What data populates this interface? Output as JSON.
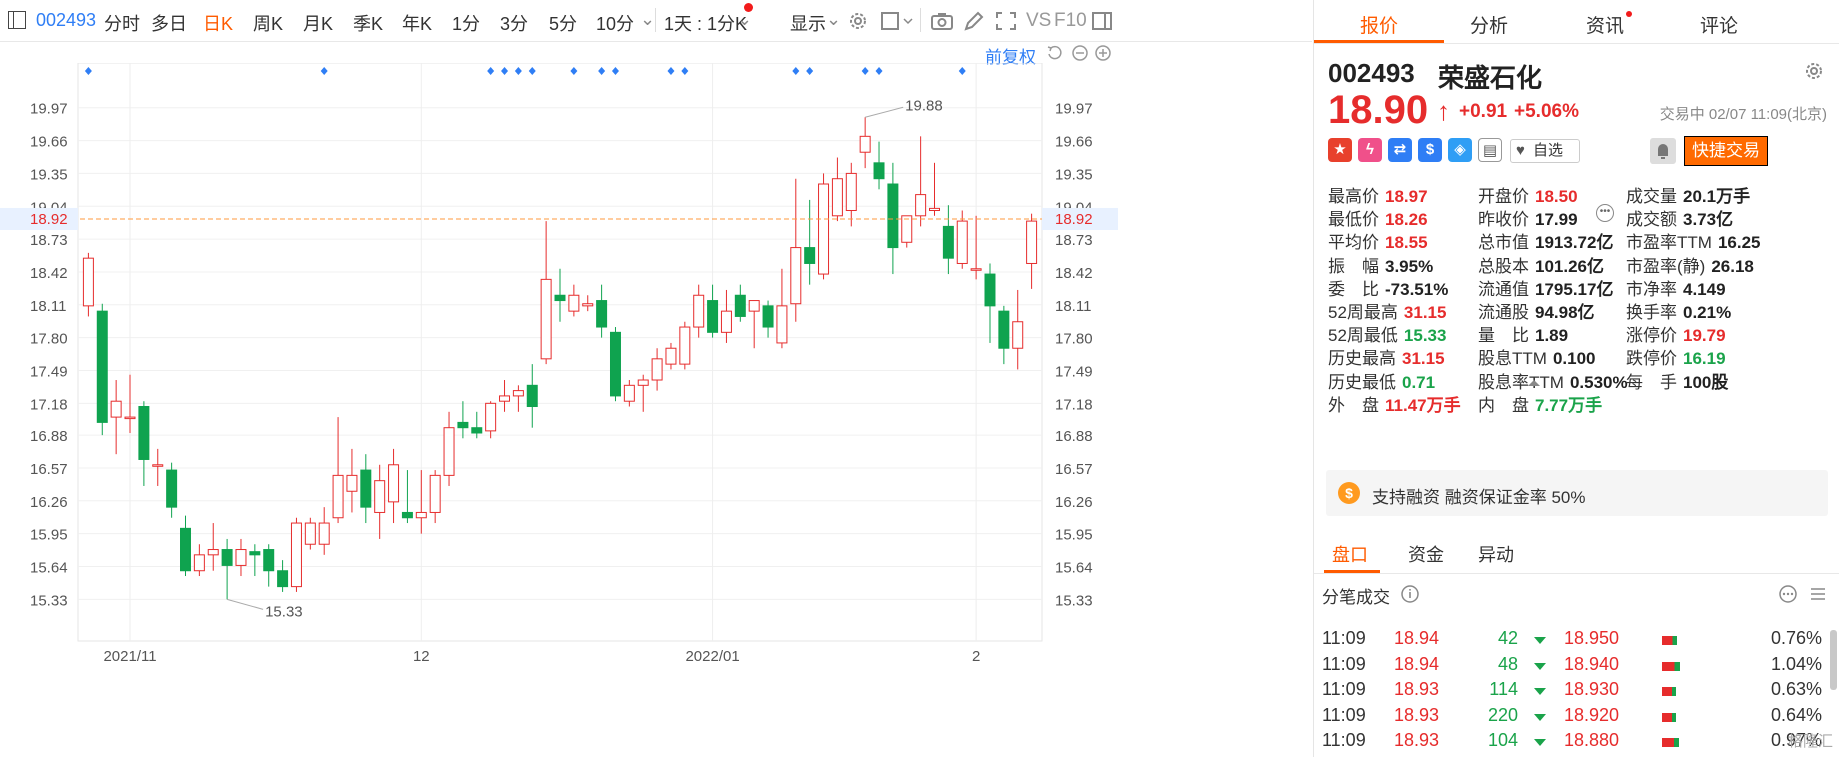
{
  "toolbar": {
    "code": "002493",
    "periods": [
      "分时",
      "多日",
      "日K",
      "周K",
      "月K",
      "季K",
      "年K",
      "1分",
      "3分",
      "5分",
      "10分"
    ],
    "active_period": "日K",
    "range": "1天 : 1分K",
    "display": "显示",
    "vs": "VS",
    "f10": "F10"
  },
  "chart": {
    "fuquan": "前复权",
    "current_price_label": "18.92",
    "max_label": "19.88",
    "min_label": "15.33",
    "x_labels": [
      {
        "label": "2021/11",
        "index": 3
      },
      {
        "label": "12",
        "index": 24
      },
      {
        "label": "2022/01",
        "index": 45
      },
      {
        "label": "2",
        "index": 64
      }
    ],
    "event_marker_indices": [
      0,
      17,
      29,
      30,
      31,
      32,
      35,
      37,
      38,
      42,
      43,
      51,
      52,
      56,
      57,
      63
    ]
  },
  "chart_data": {
    "type": "candlestick",
    "y_ticks": [
      19.97,
      19.66,
      19.35,
      19.04,
      18.73,
      18.42,
      18.11,
      17.8,
      17.49,
      17.18,
      16.88,
      16.57,
      16.26,
      15.95,
      15.64,
      15.33
    ],
    "ylim": [
      15.05,
      20.26
    ],
    "reference_line": 18.92,
    "high": 19.88,
    "low": 15.33,
    "candles": [
      {
        "o": 18.1,
        "h": 18.6,
        "l": 18.0,
        "c": 18.55
      },
      {
        "o": 18.05,
        "h": 18.12,
        "l": 16.88,
        "c": 17.0
      },
      {
        "o": 17.05,
        "h": 17.4,
        "l": 16.7,
        "c": 17.2
      },
      {
        "o": 17.05,
        "h": 17.45,
        "l": 16.9,
        "c": 17.05
      },
      {
        "o": 17.15,
        "h": 17.2,
        "l": 16.4,
        "c": 16.65
      },
      {
        "o": 16.6,
        "h": 16.75,
        "l": 16.4,
        "c": 16.6
      },
      {
        "o": 16.55,
        "h": 16.62,
        "l": 16.1,
        "c": 16.2
      },
      {
        "o": 16.0,
        "h": 16.12,
        "l": 15.55,
        "c": 15.6
      },
      {
        "o": 15.6,
        "h": 15.85,
        "l": 15.55,
        "c": 15.75
      },
      {
        "o": 15.75,
        "h": 16.05,
        "l": 15.6,
        "c": 15.8
      },
      {
        "o": 15.8,
        "h": 15.9,
        "l": 15.33,
        "c": 15.65
      },
      {
        "o": 15.65,
        "h": 15.9,
        "l": 15.55,
        "c": 15.8
      },
      {
        "o": 15.78,
        "h": 15.85,
        "l": 15.55,
        "c": 15.75
      },
      {
        "o": 15.8,
        "h": 15.85,
        "l": 15.45,
        "c": 15.6
      },
      {
        "o": 15.6,
        "h": 15.7,
        "l": 15.4,
        "c": 15.45
      },
      {
        "o": 15.45,
        "h": 16.1,
        "l": 15.4,
        "c": 16.05
      },
      {
        "o": 15.85,
        "h": 16.1,
        "l": 15.8,
        "c": 16.05
      },
      {
        "o": 15.85,
        "h": 16.2,
        "l": 15.75,
        "c": 16.05
      },
      {
        "o": 16.1,
        "h": 17.05,
        "l": 16.05,
        "c": 16.5
      },
      {
        "o": 16.35,
        "h": 16.75,
        "l": 16.15,
        "c": 16.5
      },
      {
        "o": 16.55,
        "h": 16.7,
        "l": 16.05,
        "c": 16.2
      },
      {
        "o": 16.15,
        "h": 16.6,
        "l": 15.9,
        "c": 16.45
      },
      {
        "o": 16.25,
        "h": 16.75,
        "l": 16.05,
        "c": 16.6
      },
      {
        "o": 16.15,
        "h": 16.55,
        "l": 16.05,
        "c": 16.1
      },
      {
        "o": 16.1,
        "h": 16.55,
        "l": 15.95,
        "c": 16.15
      },
      {
        "o": 16.15,
        "h": 16.55,
        "l": 16.05,
        "c": 16.5
      },
      {
        "o": 16.5,
        "h": 17.1,
        "l": 16.4,
        "c": 16.95
      },
      {
        "o": 17.0,
        "h": 17.2,
        "l": 16.85,
        "c": 16.95
      },
      {
        "o": 16.95,
        "h": 17.1,
        "l": 16.85,
        "c": 16.9
      },
      {
        "o": 16.92,
        "h": 17.2,
        "l": 16.85,
        "c": 17.18
      },
      {
        "o": 17.2,
        "h": 17.4,
        "l": 17.1,
        "c": 17.25
      },
      {
        "o": 17.25,
        "h": 17.35,
        "l": 17.1,
        "c": 17.3
      },
      {
        "o": 17.35,
        "h": 17.55,
        "l": 16.95,
        "c": 17.15
      },
      {
        "o": 17.6,
        "h": 18.9,
        "l": 17.55,
        "c": 18.35
      },
      {
        "o": 18.2,
        "h": 18.45,
        "l": 17.95,
        "c": 18.15
      },
      {
        "o": 18.05,
        "h": 18.3,
        "l": 18.0,
        "c": 18.2
      },
      {
        "o": 18.1,
        "h": 18.2,
        "l": 18.05,
        "c": 18.12
      },
      {
        "o": 18.15,
        "h": 18.3,
        "l": 17.8,
        "c": 17.9
      },
      {
        "o": 17.85,
        "h": 17.9,
        "l": 17.2,
        "c": 17.25
      },
      {
        "o": 17.2,
        "h": 17.4,
        "l": 17.15,
        "c": 17.35
      },
      {
        "o": 17.35,
        "h": 17.45,
        "l": 17.1,
        "c": 17.4
      },
      {
        "o": 17.4,
        "h": 17.7,
        "l": 17.3,
        "c": 17.6
      },
      {
        "o": 17.55,
        "h": 17.75,
        "l": 17.5,
        "c": 17.7
      },
      {
        "o": 17.55,
        "h": 17.95,
        "l": 17.5,
        "c": 17.9
      },
      {
        "o": 17.9,
        "h": 18.3,
        "l": 17.8,
        "c": 18.2
      },
      {
        "o": 18.15,
        "h": 18.3,
        "l": 17.8,
        "c": 17.85
      },
      {
        "o": 17.85,
        "h": 18.25,
        "l": 17.75,
        "c": 18.05
      },
      {
        "o": 18.2,
        "h": 18.3,
        "l": 17.95,
        "c": 18.0
      },
      {
        "o": 18.05,
        "h": 18.15,
        "l": 17.7,
        "c": 18.15
      },
      {
        "o": 18.1,
        "h": 18.15,
        "l": 17.8,
        "c": 17.9
      },
      {
        "o": 17.75,
        "h": 18.45,
        "l": 17.7,
        "c": 18.1
      },
      {
        "o": 18.12,
        "h": 19.3,
        "l": 17.95,
        "c": 18.65
      },
      {
        "o": 18.65,
        "h": 19.1,
        "l": 18.3,
        "c": 18.5
      },
      {
        "o": 18.4,
        "h": 19.35,
        "l": 18.35,
        "c": 19.25
      },
      {
        "o": 18.95,
        "h": 19.5,
        "l": 18.9,
        "c": 19.3
      },
      {
        "o": 19.0,
        "h": 19.45,
        "l": 18.85,
        "c": 19.35
      },
      {
        "o": 19.55,
        "h": 19.88,
        "l": 19.4,
        "c": 19.7
      },
      {
        "o": 19.45,
        "h": 19.65,
        "l": 19.2,
        "c": 19.3
      },
      {
        "o": 19.25,
        "h": 19.45,
        "l": 18.4,
        "c": 18.65
      },
      {
        "o": 18.7,
        "h": 18.95,
        "l": 18.65,
        "c": 18.95
      },
      {
        "o": 18.95,
        "h": 19.7,
        "l": 18.85,
        "c": 19.15
      },
      {
        "o": 19.0,
        "h": 19.45,
        "l": 18.95,
        "c": 19.02
      },
      {
        "o": 18.85,
        "h": 19.05,
        "l": 18.4,
        "c": 18.55
      },
      {
        "o": 18.5,
        "h": 19.0,
        "l": 18.45,
        "c": 18.9
      },
      {
        "o": 18.45,
        "h": 18.95,
        "l": 18.35,
        "c": 18.45
      },
      {
        "o": 18.4,
        "h": 18.5,
        "l": 17.75,
        "c": 18.1
      },
      {
        "o": 18.05,
        "h": 18.1,
        "l": 17.55,
        "c": 17.7
      },
      {
        "o": 17.7,
        "h": 18.25,
        "l": 17.5,
        "c": 17.95
      },
      {
        "o": 18.5,
        "h": 18.97,
        "l": 18.26,
        "c": 18.9
      }
    ]
  },
  "panel": {
    "tabs": [
      "报价",
      "分析",
      "资讯",
      "评论"
    ],
    "code": "002493",
    "name": "荣盛石化",
    "price": "18.90",
    "change": "+0.91",
    "change_pct": "+5.06%",
    "status": "交易中 02/07 11:09(北京)",
    "zixuan": "自选",
    "quick_trade": "快捷交易",
    "stats": [
      [
        {
          "label": "最高价",
          "value": "18.97",
          "color": "red"
        },
        {
          "label": "开盘价",
          "value": "18.50",
          "color": "red"
        },
        {
          "label": "成交量",
          "value": "20.1万手",
          "color": "dark"
        }
      ],
      [
        {
          "label": "最低价",
          "value": "18.26",
          "color": "red"
        },
        {
          "label": "昨收价",
          "value": "17.99",
          "color": "dark"
        },
        {
          "label": "成交额",
          "value": "3.73亿",
          "color": "dark"
        }
      ],
      [
        {
          "label": "平均价",
          "value": "18.55",
          "color": "red"
        },
        {
          "label": "总市值",
          "value": "1913.72亿",
          "color": "dark"
        },
        {
          "label": "市盈率TTM",
          "value": "16.25",
          "color": "dark"
        }
      ],
      [
        {
          "label": "振　幅",
          "value": "3.95%",
          "color": "dark"
        },
        {
          "label": "总股本",
          "value": "101.26亿",
          "color": "dark"
        },
        {
          "label": "市盈率(静)",
          "value": "26.18",
          "color": "dark"
        }
      ],
      [
        {
          "label": "委　比",
          "value": "-73.51%",
          "color": "dark"
        },
        {
          "label": "流通值",
          "value": "1795.17亿",
          "color": "dark"
        },
        {
          "label": "市净率",
          "value": "4.149",
          "color": "dark"
        }
      ],
      [
        {
          "label": "52周最高",
          "value": "31.15",
          "color": "red"
        },
        {
          "label": "流通股",
          "value": "94.98亿",
          "color": "dark"
        },
        {
          "label": "换手率",
          "value": "0.21%",
          "color": "dark"
        }
      ],
      [
        {
          "label": "52周最低",
          "value": "15.33",
          "color": "green"
        },
        {
          "label": "量　比",
          "value": "1.89",
          "color": "dark"
        },
        {
          "label": "涨停价",
          "value": "19.79",
          "color": "red"
        }
      ],
      [
        {
          "label": "历史最高",
          "value": "31.15",
          "color": "red"
        },
        {
          "label": "股息TTM",
          "value": "0.100",
          "color": "dark"
        },
        {
          "label": "跌停价",
          "value": "16.19",
          "color": "green"
        }
      ],
      [
        {
          "label": "历史最低",
          "value": "0.71",
          "color": "green"
        },
        {
          "label": "股息率TTM",
          "value": "0.530%",
          "color": "dark"
        },
        {
          "label": "每　手",
          "value": "100股",
          "color": "dark"
        }
      ],
      [
        {
          "label": "外　盘",
          "value": "11.47万手",
          "color": "red"
        },
        {
          "label": "内　盘",
          "value": "7.77万手",
          "color": "green"
        }
      ]
    ],
    "margin_text": "支持融资 融资保证金率 50%",
    "bottom_tabs": [
      "盘口",
      "资金",
      "异动"
    ],
    "ticks_title": "分笔成交",
    "ticks": [
      {
        "time": "11:09",
        "price": "18.94",
        "vol": "42",
        "level": "18.950",
        "pct": "0.76%",
        "ratio": 0.76
      },
      {
        "time": "11:09",
        "price": "18.94",
        "vol": "48",
        "level": "18.940",
        "pct": "1.04%",
        "ratio": 1.04
      },
      {
        "time": "11:09",
        "price": "18.93",
        "vol": "114",
        "level": "18.930",
        "pct": "0.63%",
        "ratio": 0.63
      },
      {
        "time": "11:09",
        "price": "18.93",
        "vol": "220",
        "level": "18.920",
        "pct": "0.64%",
        "ratio": 0.64
      },
      {
        "time": "11:09",
        "price": "18.93",
        "vol": "104",
        "level": "18.880",
        "pct": "0.97%",
        "ratio": 0.97
      }
    ],
    "watermark": "格隆汇"
  },
  "colors": {
    "up": "#e62c2c",
    "down": "#0fa34f",
    "accent": "#ff5b00",
    "blue": "#2f7ef5"
  }
}
